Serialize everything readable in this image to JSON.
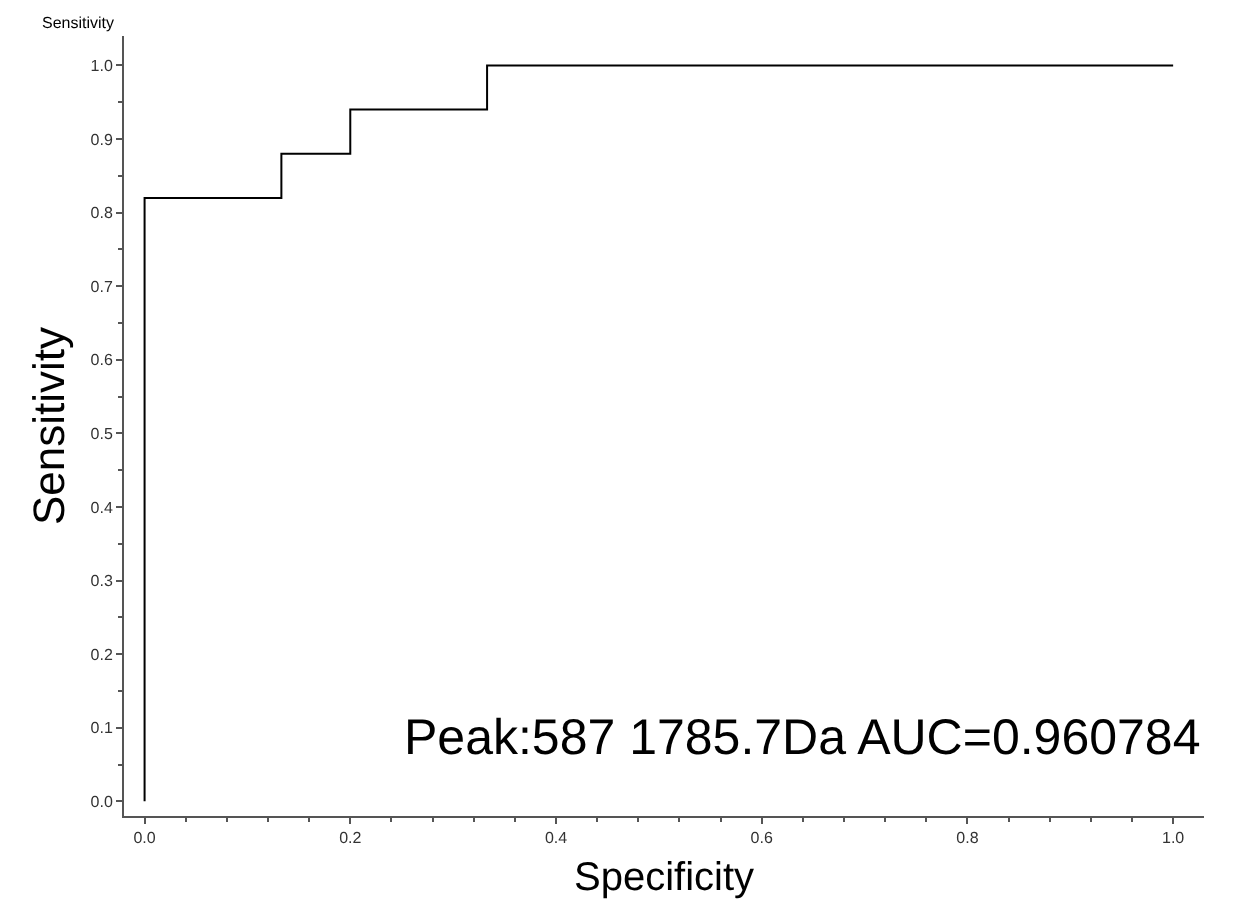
{
  "chart_data": {
    "type": "step",
    "xlabel": "Specificity",
    "ylabel": "Sensitivity",
    "x": [
      0,
      0,
      0.133,
      0.2,
      0.333,
      1
    ],
    "series": [
      {
        "color": "#000000",
        "values": [
          0,
          0.82,
          0.88,
          0.94,
          1,
          1
        ]
      }
    ],
    "xlim": [
      -0.02,
      1.03
    ],
    "ylim": [
      -0.02,
      1.04
    ],
    "xticks": [
      {
        "value": 0,
        "label": "0.0"
      },
      0.2,
      0.4,
      0.6,
      0.8,
      {
        "value": 1,
        "label": "1.0"
      }
    ],
    "yticks": [
      {
        "value": 0,
        "label": "0.0"
      },
      0.1,
      0.2,
      0.3,
      0.4,
      0.5,
      0.6,
      0.7,
      0.8,
      0.9,
      {
        "value": 1,
        "label": "1.0"
      }
    ],
    "grid": false,
    "marker": "none",
    "line_style": "solid",
    "annotations": [
      "Sensitivity",
      "Peak:587 1785.7Da AUC=0.960784"
    ]
  }
}
